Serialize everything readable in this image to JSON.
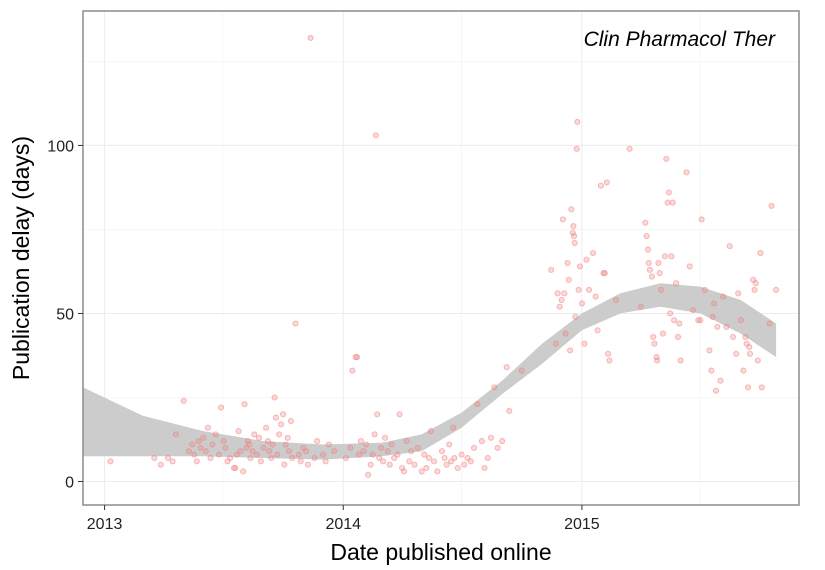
{
  "chart_data": {
    "type": "scatter",
    "panel_title": "Clin Pharmacol Ther",
    "xlabel": "Date published online",
    "ylabel": "Publication delay (days)",
    "xlim": [
      "2012-11-29",
      "2015-11-29"
    ],
    "ylim": [
      -7,
      140
    ],
    "x_ticks": [
      {
        "date": "2013-01-01",
        "label": "2013"
      },
      {
        "date": "2014-01-01",
        "label": "2014"
      },
      {
        "date": "2015-01-01",
        "label": "2015"
      }
    ],
    "y_ticks": [
      0,
      50,
      100
    ],
    "x_minor_ticks": [
      "2013-07-01",
      "2014-07-01",
      "2015-07-01"
    ],
    "y_minor_ticks": [
      25,
      75,
      125
    ],
    "grid": true,
    "point_color": "#f08080",
    "point_fill_opacity": 0.3,
    "ribbon_color": "#cccccc",
    "smooth_band": [
      {
        "x": "2012-11-29",
        "lo": 7.5,
        "hi": 28
      },
      {
        "x": "2013-03-01",
        "lo": 7.5,
        "hi": 19.5
      },
      {
        "x": "2013-06-01",
        "lo": 7.5,
        "hi": 15
      },
      {
        "x": "2013-09-01",
        "lo": 7,
        "hi": 12
      },
      {
        "x": "2013-12-01",
        "lo": 6.5,
        "hi": 11
      },
      {
        "x": "2014-03-01",
        "lo": 7.5,
        "hi": 11.5
      },
      {
        "x": "2014-05-01",
        "lo": 9,
        "hi": 14
      },
      {
        "x": "2014-07-01",
        "lo": 16,
        "hi": 20.5
      },
      {
        "x": "2014-09-01",
        "lo": 26,
        "hi": 30
      },
      {
        "x": "2014-11-01",
        "lo": 35,
        "hi": 41
      },
      {
        "x": "2015-01-01",
        "lo": 45,
        "hi": 50
      },
      {
        "x": "2015-03-01",
        "lo": 50,
        "hi": 56
      },
      {
        "x": "2015-05-01",
        "lo": 52,
        "hi": 59
      },
      {
        "x": "2015-07-01",
        "lo": 50,
        "hi": 58
      },
      {
        "x": "2015-09-01",
        "lo": 44,
        "hi": 54
      },
      {
        "x": "2015-10-25",
        "lo": 37,
        "hi": 47
      }
    ],
    "points": [
      {
        "x": "2013-01-10",
        "y": 6
      },
      {
        "x": "2013-03-18",
        "y": 7
      },
      {
        "x": "2013-03-28",
        "y": 5
      },
      {
        "x": "2013-04-08",
        "y": 7
      },
      {
        "x": "2013-04-15",
        "y": 6
      },
      {
        "x": "2013-04-20",
        "y": 14
      },
      {
        "x": "2013-05-02",
        "y": 24
      },
      {
        "x": "2013-05-10",
        "y": 9
      },
      {
        "x": "2013-05-15",
        "y": 11
      },
      {
        "x": "2013-05-18",
        "y": 8
      },
      {
        "x": "2013-05-22",
        "y": 6
      },
      {
        "x": "2013-05-25",
        "y": 12
      },
      {
        "x": "2013-05-28",
        "y": 10
      },
      {
        "x": "2013-06-01",
        "y": 13
      },
      {
        "x": "2013-06-05",
        "y": 9
      },
      {
        "x": "2013-06-08",
        "y": 16
      },
      {
        "x": "2013-06-12",
        "y": 7
      },
      {
        "x": "2013-06-15",
        "y": 11
      },
      {
        "x": "2013-06-20",
        "y": 14
      },
      {
        "x": "2013-06-25",
        "y": 8
      },
      {
        "x": "2013-06-28",
        "y": 22
      },
      {
        "x": "2013-07-02",
        "y": 12
      },
      {
        "x": "2013-07-05",
        "y": 10
      },
      {
        "x": "2013-07-08",
        "y": 6
      },
      {
        "x": "2013-07-12",
        "y": 7
      },
      {
        "x": "2013-07-18",
        "y": 4
      },
      {
        "x": "2013-07-20",
        "y": 4
      },
      {
        "x": "2013-07-22",
        "y": 8
      },
      {
        "x": "2013-07-25",
        "y": 15
      },
      {
        "x": "2013-07-28",
        "y": 9
      },
      {
        "x": "2013-08-01",
        "y": 3
      },
      {
        "x": "2013-08-03",
        "y": 23
      },
      {
        "x": "2013-08-06",
        "y": 10
      },
      {
        "x": "2013-08-08",
        "y": 12
      },
      {
        "x": "2013-08-10",
        "y": 11
      },
      {
        "x": "2013-08-12",
        "y": 7
      },
      {
        "x": "2013-08-15",
        "y": 9
      },
      {
        "x": "2013-08-18",
        "y": 14
      },
      {
        "x": "2013-08-22",
        "y": 8
      },
      {
        "x": "2013-08-25",
        "y": 13
      },
      {
        "x": "2013-08-28",
        "y": 6
      },
      {
        "x": "2013-09-01",
        "y": 10
      },
      {
        "x": "2013-09-05",
        "y": 16
      },
      {
        "x": "2013-09-08",
        "y": 12
      },
      {
        "x": "2013-09-10",
        "y": 9
      },
      {
        "x": "2013-09-13",
        "y": 7
      },
      {
        "x": "2013-09-15",
        "y": 11
      },
      {
        "x": "2013-09-18",
        "y": 25
      },
      {
        "x": "2013-09-20",
        "y": 19
      },
      {
        "x": "2013-09-22",
        "y": 8
      },
      {
        "x": "2013-09-25",
        "y": 14
      },
      {
        "x": "2013-09-28",
        "y": 17
      },
      {
        "x": "2013-10-01",
        "y": 20
      },
      {
        "x": "2013-10-03",
        "y": 5
      },
      {
        "x": "2013-10-05",
        "y": 11
      },
      {
        "x": "2013-10-08",
        "y": 13
      },
      {
        "x": "2013-10-10",
        "y": 9
      },
      {
        "x": "2013-10-13",
        "y": 18
      },
      {
        "x": "2013-10-15",
        "y": 7
      },
      {
        "x": "2013-10-20",
        "y": 47
      },
      {
        "x": "2013-10-25",
        "y": 8
      },
      {
        "x": "2013-10-28",
        "y": 6
      },
      {
        "x": "2013-11-01",
        "y": 10
      },
      {
        "x": "2013-11-05",
        "y": 9
      },
      {
        "x": "2013-11-08",
        "y": 5
      },
      {
        "x": "2013-11-12",
        "y": 132
      },
      {
        "x": "2013-11-18",
        "y": 7
      },
      {
        "x": "2013-11-22",
        "y": 12
      },
      {
        "x": "2013-12-01",
        "y": 8
      },
      {
        "x": "2013-12-05",
        "y": 6
      },
      {
        "x": "2013-12-10",
        "y": 11
      },
      {
        "x": "2013-12-18",
        "y": 9
      },
      {
        "x": "2014-01-05",
        "y": 7
      },
      {
        "x": "2014-01-12",
        "y": 10
      },
      {
        "x": "2014-01-15",
        "y": 33
      },
      {
        "x": "2014-01-20",
        "y": 37
      },
      {
        "x": "2014-01-22",
        "y": 37
      },
      {
        "x": "2014-01-25",
        "y": 8
      },
      {
        "x": "2014-01-28",
        "y": 12
      },
      {
        "x": "2014-02-01",
        "y": 9
      },
      {
        "x": "2014-02-05",
        "y": 11
      },
      {
        "x": "2014-02-08",
        "y": 2
      },
      {
        "x": "2014-02-12",
        "y": 5
      },
      {
        "x": "2014-02-15",
        "y": 8
      },
      {
        "x": "2014-02-18",
        "y": 14
      },
      {
        "x": "2014-02-20",
        "y": 103
      },
      {
        "x": "2014-02-22",
        "y": 20
      },
      {
        "x": "2014-02-25",
        "y": 7
      },
      {
        "x": "2014-02-28",
        "y": 10
      },
      {
        "x": "2014-03-03",
        "y": 6
      },
      {
        "x": "2014-03-06",
        "y": 13
      },
      {
        "x": "2014-03-10",
        "y": 9
      },
      {
        "x": "2014-03-13",
        "y": 5
      },
      {
        "x": "2014-03-16",
        "y": 11
      },
      {
        "x": "2014-03-20",
        "y": 7
      },
      {
        "x": "2014-03-25",
        "y": 8
      },
      {
        "x": "2014-03-28",
        "y": 20
      },
      {
        "x": "2014-04-01",
        "y": 4
      },
      {
        "x": "2014-04-04",
        "y": 3
      },
      {
        "x": "2014-04-08",
        "y": 12
      },
      {
        "x": "2014-04-12",
        "y": 6
      },
      {
        "x": "2014-04-15",
        "y": 9
      },
      {
        "x": "2014-04-20",
        "y": 5
      },
      {
        "x": "2014-04-25",
        "y": 10
      },
      {
        "x": "2014-05-01",
        "y": 3
      },
      {
        "x": "2014-05-05",
        "y": 8
      },
      {
        "x": "2014-05-08",
        "y": 4
      },
      {
        "x": "2014-05-12",
        "y": 7
      },
      {
        "x": "2014-05-15",
        "y": 15
      },
      {
        "x": "2014-05-20",
        "y": 6
      },
      {
        "x": "2014-05-25",
        "y": 3
      },
      {
        "x": "2014-06-01",
        "y": 9
      },
      {
        "x": "2014-06-05",
        "y": 7
      },
      {
        "x": "2014-06-08",
        "y": 5
      },
      {
        "x": "2014-06-12",
        "y": 11
      },
      {
        "x": "2014-06-15",
        "y": 6
      },
      {
        "x": "2014-06-18",
        "y": 16
      },
      {
        "x": "2014-06-20",
        "y": 7
      },
      {
        "x": "2014-06-25",
        "y": 4
      },
      {
        "x": "2014-07-01",
        "y": 8
      },
      {
        "x": "2014-07-05",
        "y": 5
      },
      {
        "x": "2014-07-10",
        "y": 7
      },
      {
        "x": "2014-07-15",
        "y": 6
      },
      {
        "x": "2014-07-20",
        "y": 10
      },
      {
        "x": "2014-07-25",
        "y": 23
      },
      {
        "x": "2014-08-01",
        "y": 12
      },
      {
        "x": "2014-08-05",
        "y": 4
      },
      {
        "x": "2014-08-10",
        "y": 7
      },
      {
        "x": "2014-08-15",
        "y": 13
      },
      {
        "x": "2014-08-20",
        "y": 28
      },
      {
        "x": "2014-08-25",
        "y": 10
      },
      {
        "x": "2014-09-01",
        "y": 12
      },
      {
        "x": "2014-09-08",
        "y": 34
      },
      {
        "x": "2014-09-12",
        "y": 21
      },
      {
        "x": "2014-10-01",
        "y": 33
      },
      {
        "x": "2014-11-15",
        "y": 63
      },
      {
        "x": "2014-11-22",
        "y": 41
      },
      {
        "x": "2014-11-25",
        "y": 56
      },
      {
        "x": "2014-11-28",
        "y": 52
      },
      {
        "x": "2014-12-01",
        "y": 54
      },
      {
        "x": "2014-12-03",
        "y": 78
      },
      {
        "x": "2014-12-05",
        "y": 56
      },
      {
        "x": "2014-12-07",
        "y": 44
      },
      {
        "x": "2014-12-10",
        "y": 65
      },
      {
        "x": "2014-12-12",
        "y": 60
      },
      {
        "x": "2014-12-14",
        "y": 39
      },
      {
        "x": "2014-12-16",
        "y": 81
      },
      {
        "x": "2014-12-18",
        "y": 74
      },
      {
        "x": "2014-12-19",
        "y": 76
      },
      {
        "x": "2014-12-20",
        "y": 73
      },
      {
        "x": "2014-12-21",
        "y": 71
      },
      {
        "x": "2014-12-22",
        "y": 49
      },
      {
        "x": "2014-12-24",
        "y": 99
      },
      {
        "x": "2014-12-25",
        "y": 107
      },
      {
        "x": "2014-12-27",
        "y": 57
      },
      {
        "x": "2014-12-29",
        "y": 64
      },
      {
        "x": "2015-01-01",
        "y": 53
      },
      {
        "x": "2015-01-05",
        "y": 41
      },
      {
        "x": "2015-01-08",
        "y": 66
      },
      {
        "x": "2015-01-12",
        "y": 57
      },
      {
        "x": "2015-01-18",
        "y": 68
      },
      {
        "x": "2015-01-22",
        "y": 55
      },
      {
        "x": "2015-01-25",
        "y": 45
      },
      {
        "x": "2015-01-30",
        "y": 88
      },
      {
        "x": "2015-02-03",
        "y": 62
      },
      {
        "x": "2015-02-05",
        "y": 62
      },
      {
        "x": "2015-02-08",
        "y": 89
      },
      {
        "x": "2015-02-10",
        "y": 38
      },
      {
        "x": "2015-02-12",
        "y": 36
      },
      {
        "x": "2015-02-22",
        "y": 54
      },
      {
        "x": "2015-03-15",
        "y": 99
      },
      {
        "x": "2015-04-01",
        "y": 52
      },
      {
        "x": "2015-04-08",
        "y": 77
      },
      {
        "x": "2015-04-10",
        "y": 73
      },
      {
        "x": "2015-04-12",
        "y": 69
      },
      {
        "x": "2015-04-13",
        "y": 65
      },
      {
        "x": "2015-04-15",
        "y": 63
      },
      {
        "x": "2015-04-18",
        "y": 61
      },
      {
        "x": "2015-04-20",
        "y": 43
      },
      {
        "x": "2015-04-22",
        "y": 41
      },
      {
        "x": "2015-04-25",
        "y": 37
      },
      {
        "x": "2015-04-26",
        "y": 36
      },
      {
        "x": "2015-04-28",
        "y": 65
      },
      {
        "x": "2015-04-30",
        "y": 62
      },
      {
        "x": "2015-05-02",
        "y": 57
      },
      {
        "x": "2015-05-05",
        "y": 44
      },
      {
        "x": "2015-05-08",
        "y": 67
      },
      {
        "x": "2015-05-10",
        "y": 96
      },
      {
        "x": "2015-05-12",
        "y": 83
      },
      {
        "x": "2015-05-14",
        "y": 86
      },
      {
        "x": "2015-05-16",
        "y": 50
      },
      {
        "x": "2015-05-18",
        "y": 67
      },
      {
        "x": "2015-05-20",
        "y": 83
      },
      {
        "x": "2015-05-22",
        "y": 48
      },
      {
        "x": "2015-05-25",
        "y": 59
      },
      {
        "x": "2015-05-28",
        "y": 43
      },
      {
        "x": "2015-05-30",
        "y": 47
      },
      {
        "x": "2015-06-01",
        "y": 36
      },
      {
        "x": "2015-06-10",
        "y": 92
      },
      {
        "x": "2015-06-15",
        "y": 64
      },
      {
        "x": "2015-06-20",
        "y": 51
      },
      {
        "x": "2015-06-28",
        "y": 48
      },
      {
        "x": "2015-07-01",
        "y": 48
      },
      {
        "x": "2015-07-03",
        "y": 78
      },
      {
        "x": "2015-07-08",
        "y": 57
      },
      {
        "x": "2015-07-15",
        "y": 39
      },
      {
        "x": "2015-07-18",
        "y": 33
      },
      {
        "x": "2015-07-20",
        "y": 49
      },
      {
        "x": "2015-07-22",
        "y": 53
      },
      {
        "x": "2015-07-25",
        "y": 27
      },
      {
        "x": "2015-07-27",
        "y": 46
      },
      {
        "x": "2015-08-01",
        "y": 30
      },
      {
        "x": "2015-08-05",
        "y": 55
      },
      {
        "x": "2015-08-10",
        "y": 46
      },
      {
        "x": "2015-08-15",
        "y": 70
      },
      {
        "x": "2015-08-20",
        "y": 43
      },
      {
        "x": "2015-08-25",
        "y": 38
      },
      {
        "x": "2015-08-28",
        "y": 56
      },
      {
        "x": "2015-09-01",
        "y": 48
      },
      {
        "x": "2015-09-05",
        "y": 33
      },
      {
        "x": "2015-09-08",
        "y": 43
      },
      {
        "x": "2015-09-10",
        "y": 41
      },
      {
        "x": "2015-09-12",
        "y": 28
      },
      {
        "x": "2015-09-14",
        "y": 40
      },
      {
        "x": "2015-09-15",
        "y": 38
      },
      {
        "x": "2015-09-20",
        "y": 60
      },
      {
        "x": "2015-09-22",
        "y": 57
      },
      {
        "x": "2015-09-24",
        "y": 59
      },
      {
        "x": "2015-09-27",
        "y": 36
      },
      {
        "x": "2015-10-01",
        "y": 68
      },
      {
        "x": "2015-10-03",
        "y": 28
      },
      {
        "x": "2015-10-15",
        "y": 47
      },
      {
        "x": "2015-10-18",
        "y": 82
      },
      {
        "x": "2015-10-25",
        "y": 57
      }
    ]
  }
}
